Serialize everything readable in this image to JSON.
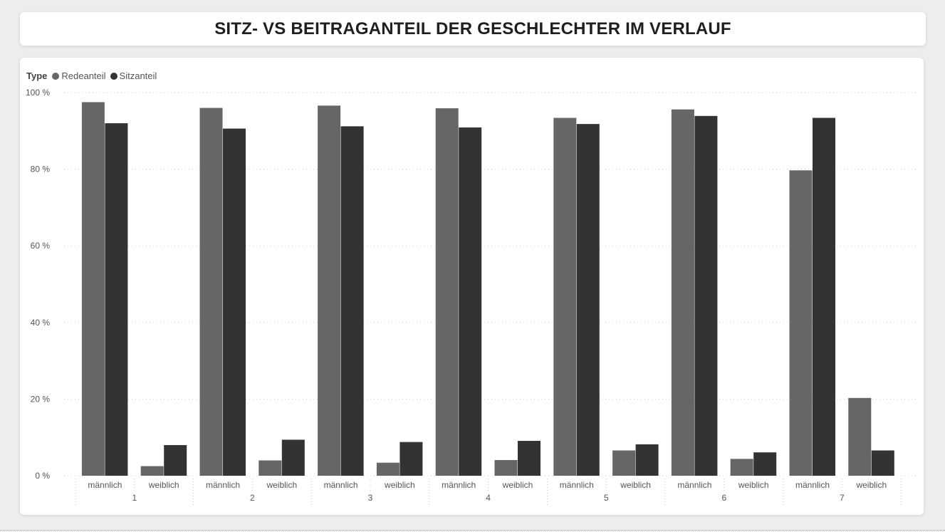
{
  "title": "SITZ- VS BEITRAGANTEIL DER GESCHLECHTER IM VERLAUF",
  "legend": {
    "title": "Type",
    "items": [
      {
        "label": "Redeanteil",
        "color": "#666666"
      },
      {
        "label": "Sitzanteil",
        "color": "#333333"
      }
    ]
  },
  "chart_data": {
    "type": "bar",
    "groups": [
      "1",
      "2",
      "3",
      "4",
      "5",
      "6",
      "7"
    ],
    "subcategories": [
      "männlich",
      "weiblich"
    ],
    "y_tick_labels": [
      "0 %",
      "20 %",
      "40 %",
      "60 %",
      "80 %",
      "100 %"
    ],
    "ylim": [
      0,
      100
    ],
    "grid": true,
    "legend_position": "top-left",
    "series": [
      {
        "name": "Redeanteil",
        "color": "#666666",
        "values": [
          97.5,
          2.5,
          96.0,
          4.0,
          96.6,
          3.4,
          95.9,
          4.1,
          93.4,
          6.6,
          95.6,
          4.4,
          79.7,
          20.3
        ]
      },
      {
        "name": "Sitzanteil",
        "color": "#333333",
        "values": [
          92.0,
          8.0,
          90.6,
          9.4,
          91.2,
          8.8,
          90.9,
          9.1,
          91.8,
          8.2,
          93.9,
          6.1,
          93.4,
          6.6
        ]
      }
    ]
  }
}
